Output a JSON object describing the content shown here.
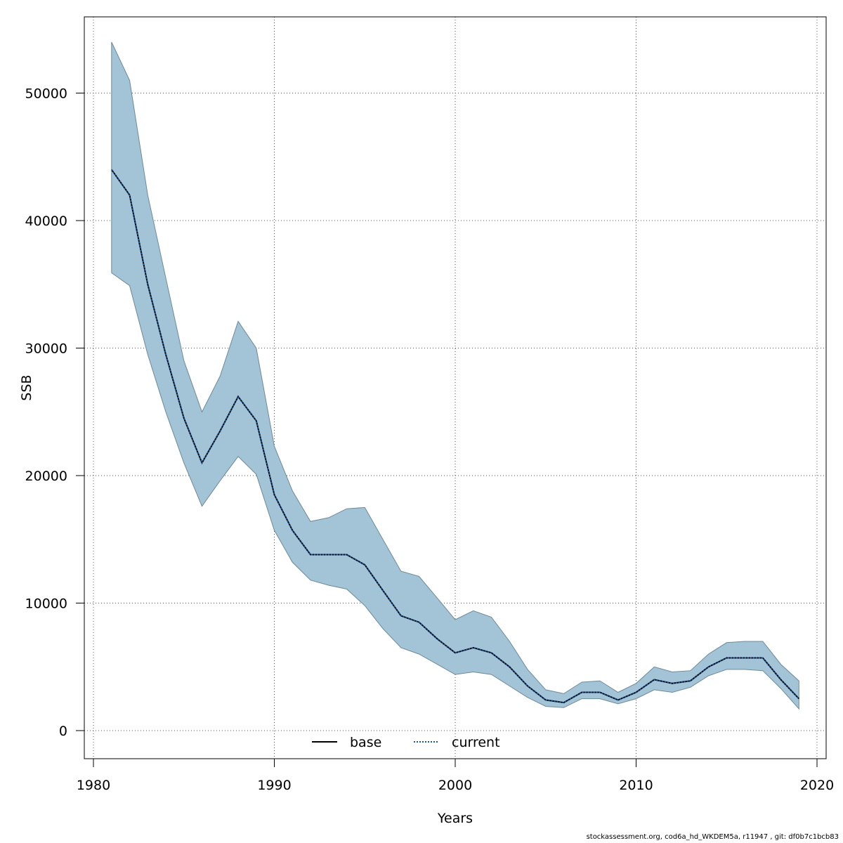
{
  "chart_data": {
    "type": "area",
    "xlabel": "Years",
    "ylabel": "SSB",
    "xlim": [
      1980,
      2020
    ],
    "ylim": [
      0,
      55000
    ],
    "x_ticks": [
      1980,
      1990,
      2000,
      2010,
      2020
    ],
    "y_ticks": [
      0,
      10000,
      20000,
      30000,
      40000,
      50000
    ],
    "grid": true,
    "legend_position": "bottom-center",
    "x": [
      1981,
      1982,
      1983,
      1984,
      1985,
      1986,
      1987,
      1988,
      1989,
      1990,
      1991,
      1992,
      1993,
      1994,
      1995,
      1996,
      1997,
      1998,
      1999,
      2000,
      2001,
      2002,
      2003,
      2004,
      2005,
      2006,
      2007,
      2008,
      2009,
      2010,
      2011,
      2012,
      2013,
      2014,
      2015,
      2016,
      2017,
      2018,
      2019
    ],
    "series": [
      {
        "name": "base",
        "style": "solid",
        "color": "#000000",
        "values": [
          44000,
          42000,
          35000,
          29500,
          24500,
          21000,
          23500,
          26200,
          24300,
          18500,
          15700,
          13800,
          13800,
          13800,
          13000,
          11000,
          9000,
          8500,
          7200,
          6100,
          6500,
          6100,
          5000,
          3500,
          2400,
          2200,
          3000,
          3000,
          2400,
          3000,
          4000,
          3700,
          3900,
          5000,
          5700,
          5700,
          5700,
          4000,
          2500
        ]
      },
      {
        "name": "current",
        "style": "dotted",
        "color": "#1a5aa0",
        "values": [
          44000,
          42000,
          35000,
          29500,
          24500,
          21000,
          23500,
          26200,
          24300,
          18500,
          15700,
          13800,
          13800,
          13800,
          13000,
          11000,
          9000,
          8500,
          7200,
          6100,
          6500,
          6100,
          5000,
          3500,
          2400,
          2200,
          3000,
          3000,
          2400,
          3000,
          4000,
          3700,
          3900,
          5000,
          5700,
          5700,
          5700,
          4000,
          2500
        ]
      }
    ],
    "confidence_band": {
      "color": "#a3c4d6",
      "edge_color": "#6c8a99",
      "upper": [
        54000,
        51000,
        42000,
        35500,
        29000,
        25000,
        27800,
        32100,
        30000,
        22300,
        18800,
        16400,
        16700,
        17400,
        17500,
        15000,
        12500,
        12100,
        10400,
        8700,
        9400,
        8900,
        7000,
        4800,
        3200,
        2900,
        3800,
        3900,
        3000,
        3700,
        5000,
        4600,
        4700,
        6000,
        6900,
        7000,
        7000,
        5200,
        3900
      ],
      "lower": [
        35900,
        34900,
        29500,
        25000,
        21000,
        17600,
        19600,
        21500,
        20100,
        15700,
        13200,
        11800,
        11400,
        11100,
        9800,
        8000,
        6500,
        6000,
        5200,
        4400,
        4600,
        4400,
        3500,
        2600,
        1900,
        1800,
        2500,
        2500,
        2100,
        2500,
        3200,
        3000,
        3400,
        4300,
        4800,
        4800,
        4700,
        3300,
        1700
      ]
    },
    "footer": "stockassessment.org, cod6a_hd_WKDEM5a, r11947 , git: df0b7c1bcb83"
  }
}
